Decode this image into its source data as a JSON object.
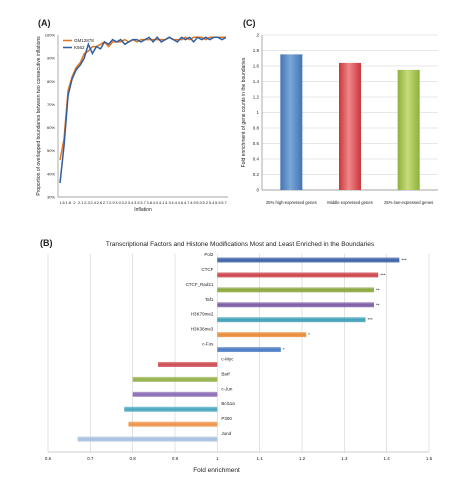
{
  "colors": {
    "gm12878": "#e8731c",
    "k562": "#2f5f9e",
    "bar_blue_light": "#7aa7d8",
    "bar_blue_dark": "#4474b4",
    "bar_red_light": "#f0888a",
    "bar_red_dark": "#c9373b",
    "bar_green_light": "#c6dc78",
    "bar_green_dark": "#8db03b",
    "b_pol2": "#3a62a8",
    "b_ctcf": "#c9444a",
    "b_ctcf_rad21": "#8ba63d",
    "b_taf1": "#7d5ba6",
    "b_h3k79me2": "#3fa0b8",
    "b_h3k36me3": "#e88a35",
    "b_cfos": "#4a7cc4",
    "b_cmyc": "#cc4a4f",
    "b_barf": "#93b04a",
    "b_cjun": "#8a6cb4",
    "b_bcl11a": "#49a7c0",
    "b_p300": "#ee9248",
    "b_jund": "#a8bfe0"
  },
  "chart_data": [
    {
      "panel": "(A)",
      "type": "line",
      "ylabel": "Proportion of overlapped boundaries between two consecutive inflations",
      "xlabel": "Inflation",
      "x_ticks": [
        "1.6",
        "1.8",
        "2",
        "2.1",
        "2.3",
        "2.4",
        "2.6",
        "2.7",
        "2.9",
        "3.0",
        "3.2",
        "3.4",
        "3.5",
        "3.7",
        "3.8",
        "4.0",
        "4.1",
        "4.3",
        "4.4",
        "4.6",
        "4.7",
        "4.9",
        "5.0",
        "5.2",
        "5.4",
        "5.5",
        "5.7"
      ],
      "y_ticks": [
        "30%",
        "40%",
        "50%",
        "60%",
        "70%",
        "80%",
        "90%",
        "100%"
      ],
      "ylim": [
        0.3,
        1.0
      ],
      "legend_position": "top-left",
      "series": [
        {
          "name": "GM12878",
          "color_key": "gm12878",
          "values": [
            0.46,
            0.55,
            0.76,
            0.82,
            0.86,
            0.88,
            0.92,
            0.93,
            0.95,
            0.95,
            0.96,
            0.97,
            0.95,
            0.97,
            0.97,
            0.97,
            0.98,
            0.97,
            0.98,
            0.97,
            0.98,
            0.98,
            0.98,
            0.98,
            0.98,
            0.98,
            0.98,
            0.99,
            0.98,
            0.98,
            0.98,
            0.99,
            0.98,
            0.99,
            0.99,
            0.99,
            0.98,
            0.99,
            0.99,
            0.99,
            0.99,
            0.99
          ]
        },
        {
          "name": "K562",
          "color_key": "k562",
          "values": [
            0.36,
            0.52,
            0.74,
            0.81,
            0.85,
            0.87,
            0.9,
            0.96,
            0.92,
            0.95,
            0.94,
            0.97,
            0.96,
            0.98,
            0.97,
            0.98,
            0.96,
            0.97,
            0.98,
            0.98,
            0.97,
            0.98,
            0.99,
            0.97,
            0.99,
            0.97,
            0.98,
            0.99,
            0.98,
            0.97,
            0.99,
            0.98,
            0.99,
            0.97,
            0.99,
            0.98,
            0.99,
            0.98,
            0.99,
            0.99,
            0.98,
            0.99
          ]
        }
      ]
    },
    {
      "panel": "(C)",
      "type": "bar",
      "ylabel": "Fold enrichment of gene counts in the boundaries",
      "y_ticks": [
        "0",
        "0.2",
        "0.4",
        "0.6",
        "0.8",
        "1",
        "1.2",
        "1.4",
        "1.6",
        "1.8",
        "2"
      ],
      "ylim": [
        0,
        2
      ],
      "grid": true,
      "categories": [
        "25% high-expressed genes",
        "Middle expressed genes",
        "25% low-expressed genes"
      ],
      "values": [
        1.75,
        1.64,
        1.55
      ],
      "color_keys": [
        [
          "bar_blue_light",
          "bar_blue_dark"
        ],
        [
          "bar_red_light",
          "bar_red_dark"
        ],
        [
          "bar_green_light",
          "bar_green_dark"
        ]
      ]
    },
    {
      "panel": "(B)",
      "type": "bar",
      "orientation": "horizontal",
      "title": "Transcriptional Factors and Histone Modifications Most and Least Enriched in the Boundaries",
      "xlabel": "Fold enrichment",
      "x_ticks": [
        "0.6",
        "0.7",
        "0.8",
        "0.9",
        "1",
        "1.1",
        "1.2",
        "1.3",
        "1.4",
        "1.5"
      ],
      "xlim": [
        0.6,
        1.5
      ],
      "baseline": 1.0,
      "grid": true,
      "categories": [
        "Pol2",
        "CTCF",
        "CTCF_Rad21",
        "Taf1",
        "H3K79me2",
        "H3K36me3",
        "c-Fos",
        "c-Myc",
        "Barf",
        "c-Jun",
        "Bcl11a",
        "P300",
        "Jund"
      ],
      "values": [
        1.43,
        1.38,
        1.37,
        1.37,
        1.35,
        1.21,
        1.15,
        0.86,
        0.8,
        0.8,
        0.78,
        0.79,
        0.67
      ],
      "annotations": [
        "***",
        "***",
        "**",
        "**",
        "***",
        "*",
        "*",
        "",
        "",
        "",
        "",
        "",
        ""
      ],
      "color_keys": [
        "b_pol2",
        "b_ctcf",
        "b_ctcf_rad21",
        "b_taf1",
        "b_h3k79me2",
        "b_h3k36me3",
        "b_cfos",
        "b_cmyc",
        "b_barf",
        "b_cjun",
        "b_bcl11a",
        "b_p300",
        "b_jund"
      ]
    }
  ]
}
